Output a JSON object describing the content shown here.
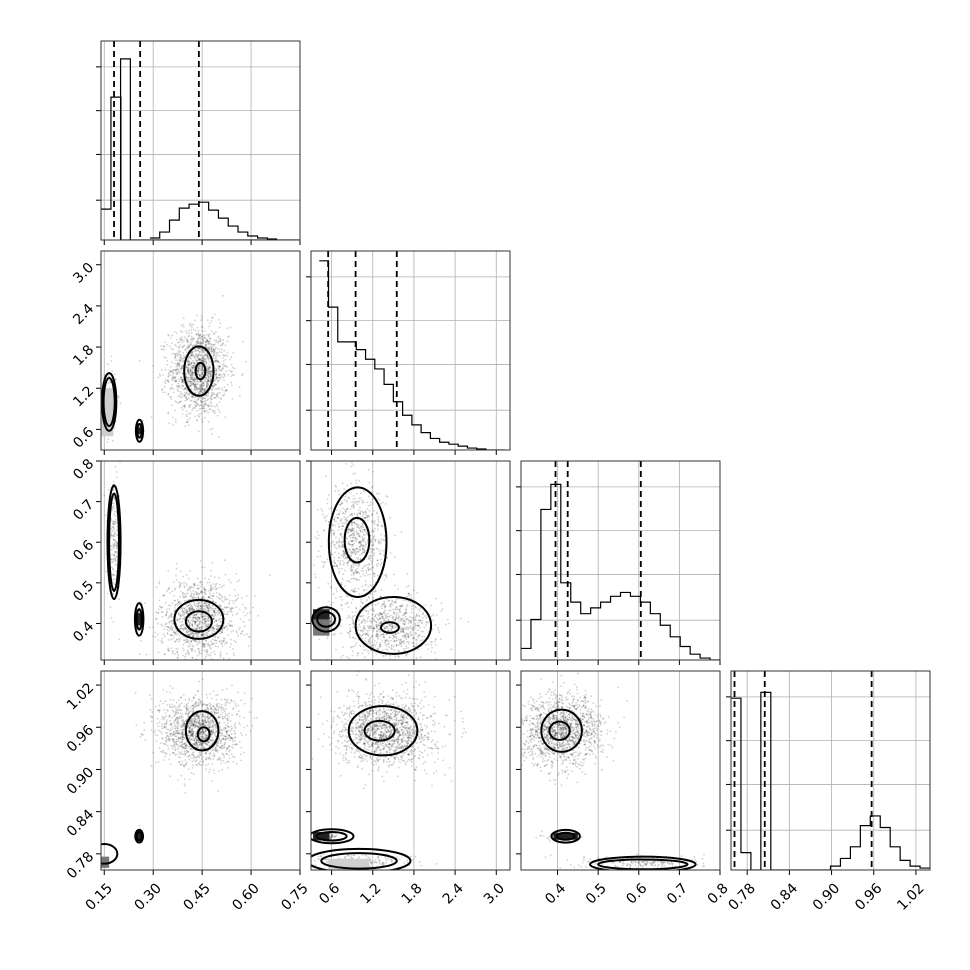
{
  "chart_data": {
    "type": "corner",
    "description_free": true,
    "parameters": [
      {
        "range": [
          0.14,
          0.75
        ],
        "ticks": [
          0.15,
          0.3,
          0.45,
          0.6,
          0.75
        ],
        "tick_labels": [
          "0.15",
          "0.30",
          "0.45",
          "0.60",
          "0.75"
        ]
      },
      {
        "range": [
          0.3,
          3.2
        ],
        "ticks": [
          0.6,
          1.2,
          1.8,
          2.4,
          3.0
        ],
        "tick_labels": [
          "0.6",
          "1.2",
          "1.8",
          "2.4",
          "3.0"
        ]
      },
      {
        "range": [
          0.31,
          0.8
        ],
        "ticks": [
          0.4,
          0.5,
          0.6,
          0.7,
          0.8
        ],
        "tick_labels": [
          "0.4",
          "0.5",
          "0.6",
          "0.7",
          "0.8"
        ]
      },
      {
        "range": [
          0.757,
          1.04
        ],
        "ticks": [
          0.78,
          0.84,
          0.9,
          0.96,
          1.02
        ],
        "tick_labels": [
          "0.78",
          "0.84",
          "0.90",
          "0.96",
          "1.02"
        ]
      }
    ],
    "histograms": [
      {
        "param": 0,
        "edges_start": 0.14,
        "bin_width": 0.0305,
        "counts": [
          0.16,
          0.74,
          0.0,
          0.0,
          0.0,
          0.0,
          0.0,
          0.0,
          0.0,
          0.0,
          0.0,
          0.0,
          0.0,
          0.0,
          0.0,
          0.0,
          0.0,
          0.0,
          0.0,
          0.0
        ],
        "quantiles": [
          0.18,
          0.26,
          0.44
        ]
      },
      {
        "param": 1,
        "edges_start": 0.42,
        "bin_width": 0.135,
        "counts": [
          0.98,
          0.74,
          0.56,
          0.56,
          0.52,
          0.47,
          0.42,
          0.34,
          0.25,
          0.18,
          0.13,
          0.09,
          0.06,
          0.04,
          0.03,
          0.02,
          0.01,
          0.005,
          0.0,
          0.0
        ],
        "quantiles": [
          0.55,
          0.95,
          1.55
        ]
      },
      {
        "param": 2,
        "edges_start": 0.31,
        "bin_width": 0.0245,
        "counts": [
          0.06,
          0.21,
          0.78,
          0.91,
          0.4,
          0.3,
          0.24,
          0.27,
          0.3,
          0.33,
          0.35,
          0.33,
          0.3,
          0.24,
          0.18,
          0.12,
          0.07,
          0.03,
          0.01,
          0.0
        ],
        "quantiles": [
          0.395,
          0.425,
          0.605
        ]
      },
      {
        "param": 3,
        "edges_start": 0.757,
        "bin_width": 0.01415,
        "counts": [
          0.89,
          0.09,
          0.0,
          0.92,
          0.0,
          0.0,
          0.0,
          0.0,
          0.0,
          0.0,
          0.02,
          0.06,
          0.12,
          0.23,
          0.28,
          0.22,
          0.12,
          0.05,
          0.02,
          0.01
        ],
        "quantiles": [
          0.762,
          0.805,
          0.957
        ]
      }
    ],
    "hist_extra": [
      {
        "param": 0,
        "peak_overlay": [
          [
            0.2,
            0.23,
            1.0
          ]
        ],
        "tail": [
          [
            0.29,
            0.01
          ],
          [
            0.32,
            0.04
          ],
          [
            0.35,
            0.1
          ],
          [
            0.38,
            0.16
          ],
          [
            0.41,
            0.18
          ],
          [
            0.44,
            0.19
          ],
          [
            0.47,
            0.15
          ],
          [
            0.5,
            0.11
          ],
          [
            0.53,
            0.07
          ],
          [
            0.56,
            0.04
          ],
          [
            0.59,
            0.02
          ],
          [
            0.62,
            0.01
          ],
          [
            0.65,
            0.005
          ]
        ]
      }
    ],
    "scatter_panels": [
      {
        "x_param": 0,
        "y_param": 1,
        "clusters": [
          {
            "cx": 0.44,
            "cy": 1.45,
            "sx": 0.045,
            "sy": 0.32,
            "n": 1400
          },
          {
            "cx": 0.165,
            "cy": 1.0,
            "sx": 0.012,
            "sy": 0.25,
            "n": 150
          },
          {
            "cx": 0.26,
            "cy": 0.58,
            "sx": 0.006,
            "sy": 0.06,
            "n": 60
          }
        ]
      },
      {
        "x_param": 0,
        "y_param": 2,
        "clusters": [
          {
            "cx": 0.44,
            "cy": 0.41,
            "sx": 0.06,
            "sy": 0.05,
            "n": 1200
          },
          {
            "cx": 0.18,
            "cy": 0.6,
            "sx": 0.01,
            "sy": 0.07,
            "n": 200
          },
          {
            "cx": 0.26,
            "cy": 0.41,
            "sx": 0.006,
            "sy": 0.02,
            "n": 60
          }
        ]
      },
      {
        "x_param": 1,
        "y_param": 2,
        "clusters": [
          {
            "cx": 0.95,
            "cy": 0.6,
            "sx": 0.22,
            "sy": 0.07,
            "n": 800
          },
          {
            "cx": 1.45,
            "cy": 0.39,
            "sx": 0.35,
            "sy": 0.04,
            "n": 800
          },
          {
            "cx": 0.55,
            "cy": 0.41,
            "sx": 0.05,
            "sy": 0.015,
            "n": 80
          }
        ]
      },
      {
        "x_param": 0,
        "y_param": 3,
        "clusters": [
          {
            "cx": 0.44,
            "cy": 0.955,
            "sx": 0.06,
            "sy": 0.025,
            "n": 1400
          },
          {
            "cx": 0.26,
            "cy": 0.805,
            "sx": 0.005,
            "sy": 0.004,
            "n": 40
          }
        ]
      },
      {
        "x_param": 1,
        "y_param": 3,
        "clusters": [
          {
            "cx": 1.4,
            "cy": 0.955,
            "sx": 0.35,
            "sy": 0.025,
            "n": 1400
          },
          {
            "cx": 0.55,
            "cy": 0.805,
            "sx": 0.08,
            "sy": 0.003,
            "n": 80
          },
          {
            "cx": 1.0,
            "cy": 0.768,
            "sx": 0.4,
            "sy": 0.006,
            "n": 200
          }
        ]
      },
      {
        "x_param": 2,
        "y_param": 3,
        "clusters": [
          {
            "cx": 0.41,
            "cy": 0.955,
            "sx": 0.05,
            "sy": 0.025,
            "n": 1400
          },
          {
            "cx": 0.41,
            "cy": 0.805,
            "sx": 0.02,
            "sy": 0.003,
            "n": 80
          },
          {
            "cx": 0.61,
            "cy": 0.768,
            "sx": 0.08,
            "sy": 0.005,
            "n": 200
          }
        ]
      }
    ],
    "contours": [
      {
        "x_param": 0,
        "y_param": 1,
        "ellipses": [
          [
            0.44,
            1.45,
            0.045,
            0.36
          ],
          [
            0.445,
            1.45,
            0.015,
            0.12
          ],
          [
            0.165,
            1.0,
            0.022,
            0.42
          ],
          [
            0.165,
            1.0,
            0.017,
            0.35
          ],
          [
            0.258,
            0.58,
            0.011,
            0.16
          ],
          [
            0.258,
            0.58,
            0.007,
            0.1
          ]
        ]
      },
      {
        "x_param": 0,
        "y_param": 2,
        "ellipses": [
          [
            0.44,
            0.41,
            0.075,
            0.048
          ],
          [
            0.44,
            0.405,
            0.04,
            0.025
          ],
          [
            0.18,
            0.6,
            0.02,
            0.14
          ],
          [
            0.18,
            0.6,
            0.015,
            0.12
          ],
          [
            0.257,
            0.41,
            0.013,
            0.04
          ],
          [
            0.257,
            0.41,
            0.008,
            0.025
          ]
        ]
      },
      {
        "x_param": 1,
        "y_param": 2,
        "ellipses": [
          [
            0.98,
            0.6,
            0.42,
            0.135
          ],
          [
            0.97,
            0.605,
            0.18,
            0.055
          ],
          [
            1.5,
            0.395,
            0.55,
            0.07
          ],
          [
            1.45,
            0.39,
            0.13,
            0.013
          ],
          [
            0.52,
            0.41,
            0.2,
            0.03
          ],
          [
            0.52,
            0.41,
            0.13,
            0.018
          ]
        ]
      },
      {
        "x_param": 0,
        "y_param": 3,
        "ellipses": [
          [
            0.45,
            0.955,
            0.05,
            0.028
          ],
          [
            0.455,
            0.95,
            0.018,
            0.01
          ],
          [
            0.257,
            0.805,
            0.012,
            0.009
          ],
          [
            0.257,
            0.805,
            0.008,
            0.006
          ],
          [
            0.15,
            0.78,
            0.04,
            0.014
          ]
        ]
      },
      {
        "x_param": 1,
        "y_param": 3,
        "ellipses": [
          [
            1.35,
            0.955,
            0.5,
            0.035
          ],
          [
            1.3,
            0.955,
            0.22,
            0.014
          ],
          [
            0.6,
            0.805,
            0.32,
            0.01
          ],
          [
            0.6,
            0.805,
            0.22,
            0.006
          ],
          [
            1.0,
            0.77,
            0.75,
            0.017
          ],
          [
            1.0,
            0.77,
            0.55,
            0.011
          ]
        ]
      },
      {
        "x_param": 2,
        "y_param": 3,
        "ellipses": [
          [
            0.41,
            0.955,
            0.05,
            0.03
          ],
          [
            0.405,
            0.955,
            0.025,
            0.013
          ],
          [
            0.42,
            0.805,
            0.035,
            0.009
          ],
          [
            0.42,
            0.805,
            0.022,
            0.005
          ],
          [
            0.61,
            0.765,
            0.13,
            0.011
          ],
          [
            0.61,
            0.765,
            0.11,
            0.007
          ]
        ]
      }
    ],
    "dense_cells": [
      {
        "x_param": 0,
        "y_param": 1,
        "cells": [
          [
            0.16,
            0.85,
            0.018,
            0.35,
            "lo"
          ],
          [
            0.258,
            0.58,
            0.006,
            0.05,
            "hi"
          ]
        ]
      },
      {
        "x_param": 0,
        "y_param": 2,
        "cells": [
          [
            0.257,
            0.41,
            0.006,
            0.015,
            "hi"
          ]
        ]
      },
      {
        "x_param": 1,
        "y_param": 2,
        "cells": [
          [
            0.45,
            0.415,
            0.12,
            0.02,
            "hi"
          ],
          [
            0.45,
            0.39,
            0.12,
            0.02,
            "mid"
          ]
        ]
      },
      {
        "x_param": 0,
        "y_param": 3,
        "cells": [
          [
            0.257,
            0.805,
            0.006,
            0.005,
            "hi"
          ],
          [
            0.14,
            0.768,
            0.025,
            0.008,
            "mid"
          ]
        ]
      },
      {
        "x_param": 1,
        "y_param": 3,
        "cells": [
          [
            0.45,
            0.805,
            0.12,
            0.006,
            "hi"
          ],
          [
            0.85,
            0.765,
            0.3,
            0.008,
            "lo"
          ]
        ]
      },
      {
        "x_param": 2,
        "y_param": 3,
        "cells": [
          [
            0.42,
            0.805,
            0.03,
            0.005,
            "hi"
          ]
        ]
      }
    ]
  }
}
